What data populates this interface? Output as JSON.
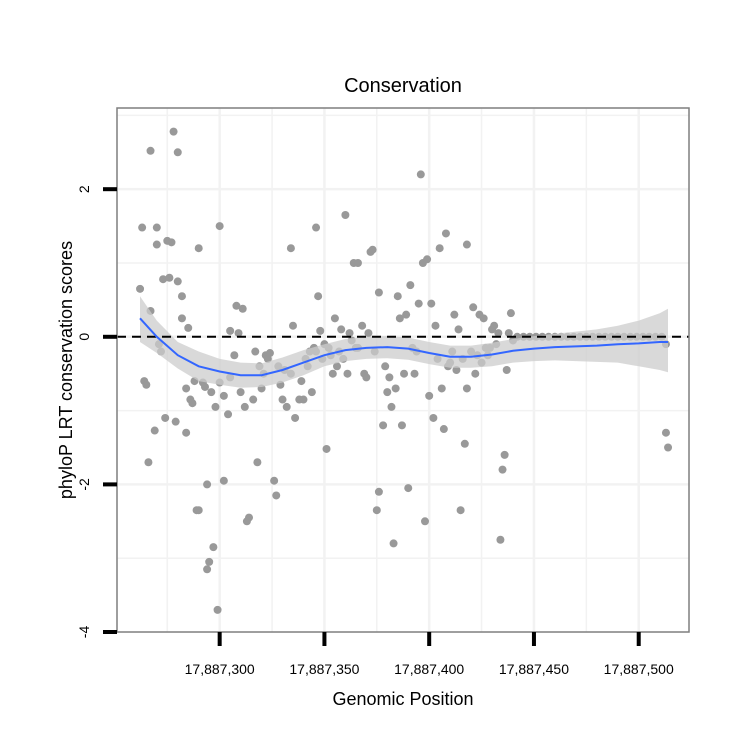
{
  "chart_data": {
    "type": "scatter",
    "title": "Conservation",
    "xlabel": "Genomic Position",
    "ylabel": "phyloP LRT conservation scores",
    "xlim": [
      17887251,
      17887524
    ],
    "ylim": [
      -4,
      3.1
    ],
    "x_ticks": [
      17887300,
      17887350,
      17887400,
      17887450,
      17887500
    ],
    "x_tick_labels": [
      "17,887,300",
      "17,887,350",
      "17,887,400",
      "17,887,450",
      "17,887,500"
    ],
    "y_ticks": [
      -4,
      -2,
      0,
      2
    ],
    "y_tick_labels": [
      "-4",
      "-2",
      "0",
      "2"
    ],
    "grid": true,
    "reference_line": {
      "y": 0,
      "style": "dashed"
    },
    "colors": {
      "points": "#999999",
      "smooth": "#3366ff",
      "ribbon": "#cccccc",
      "panel_border": "#7f7f7f",
      "grid": "#f2f2f2",
      "reference": "#000000"
    },
    "series": [
      {
        "name": "points",
        "points": [
          [
            17887262,
            0.65
          ],
          [
            17887263,
            1.48
          ],
          [
            17887264,
            -0.6
          ],
          [
            17887265,
            -0.65
          ],
          [
            17887266,
            -1.7
          ],
          [
            17887267,
            0.35
          ],
          [
            17887267,
            2.52
          ],
          [
            17887269,
            -1.27
          ],
          [
            17887270,
            1.25
          ],
          [
            17887270,
            1.48
          ],
          [
            17887271,
            -0.1
          ],
          [
            17887272,
            -0.2
          ],
          [
            17887273,
            0.78
          ],
          [
            17887274,
            -1.1
          ],
          [
            17887275,
            1.3
          ],
          [
            17887276,
            0.8
          ],
          [
            17887277,
            1.28
          ],
          [
            17887278,
            2.78
          ],
          [
            17887279,
            -1.15
          ],
          [
            17887280,
            2.5
          ],
          [
            17887280,
            0.75
          ],
          [
            17887282,
            0.55
          ],
          [
            17887282,
            0.25
          ],
          [
            17887284,
            -1.3
          ],
          [
            17887284,
            -0.7
          ],
          [
            17887285,
            0.12
          ],
          [
            17887286,
            -0.85
          ],
          [
            17887287,
            -0.9
          ],
          [
            17887288,
            -0.6
          ],
          [
            17887289,
            -2.35
          ],
          [
            17887290,
            -2.35
          ],
          [
            17887290,
            1.2
          ],
          [
            17887292,
            -0.62
          ],
          [
            17887293,
            -0.68
          ],
          [
            17887294,
            -3.15
          ],
          [
            17887294,
            -2.0
          ],
          [
            17887295,
            -3.05
          ],
          [
            17887296,
            -0.75
          ],
          [
            17887297,
            -2.85
          ],
          [
            17887298,
            -0.95
          ],
          [
            17887299,
            -3.7
          ],
          [
            17887300,
            -0.62
          ],
          [
            17887300,
            1.5
          ],
          [
            17887302,
            -1.95
          ],
          [
            17887302,
            -0.8
          ],
          [
            17887304,
            -1.05
          ],
          [
            17887305,
            0.08
          ],
          [
            17887305,
            -0.55
          ],
          [
            17887307,
            -0.25
          ],
          [
            17887308,
            0.42
          ],
          [
            17887309,
            0.05
          ],
          [
            17887310,
            -0.75
          ],
          [
            17887311,
            0.38
          ],
          [
            17887312,
            -0.95
          ],
          [
            17887313,
            -2.5
          ],
          [
            17887314,
            -2.45
          ],
          [
            17887316,
            -0.85
          ],
          [
            17887317,
            -0.2
          ],
          [
            17887318,
            -1.7
          ],
          [
            17887319,
            -0.4
          ],
          [
            17887320,
            -0.7
          ],
          [
            17887321,
            -0.5
          ],
          [
            17887322,
            -0.25
          ],
          [
            17887323,
            -0.3
          ],
          [
            17887324,
            -0.22
          ],
          [
            17887326,
            -1.95
          ],
          [
            17887327,
            -2.15
          ],
          [
            17887328,
            -0.4
          ],
          [
            17887329,
            -0.65
          ],
          [
            17887330,
            -0.85
          ],
          [
            17887331,
            -0.45
          ],
          [
            17887332,
            -0.95
          ],
          [
            17887334,
            1.2
          ],
          [
            17887334,
            -0.5
          ],
          [
            17887335,
            0.15
          ],
          [
            17887336,
            -1.1
          ],
          [
            17887338,
            -0.85
          ],
          [
            17887339,
            -0.6
          ],
          [
            17887340,
            -0.85
          ],
          [
            17887341,
            -0.3
          ],
          [
            17887342,
            -0.4
          ],
          [
            17887343,
            -0.2
          ],
          [
            17887344,
            -0.75
          ],
          [
            17887345,
            -0.15
          ],
          [
            17887346,
            -0.2
          ],
          [
            17887346,
            1.48
          ],
          [
            17887347,
            0.55
          ],
          [
            17887348,
            0.08
          ],
          [
            17887349,
            -0.3
          ],
          [
            17887350,
            -0.1
          ],
          [
            17887351,
            -1.52
          ],
          [
            17887352,
            -0.15
          ],
          [
            17887353,
            -0.25
          ],
          [
            17887354,
            -0.5
          ],
          [
            17887355,
            0.25
          ],
          [
            17887356,
            -0.4
          ],
          [
            17887357,
            -0.2
          ],
          [
            17887358,
            0.1
          ],
          [
            17887359,
            -0.3
          ],
          [
            17887360,
            1.65
          ],
          [
            17887361,
            -0.5
          ],
          [
            17887362,
            0.05
          ],
          [
            17887363,
            -0.05
          ],
          [
            17887364,
            1.0
          ],
          [
            17887365,
            -0.15
          ],
          [
            17887366,
            -0.15
          ],
          [
            17887366,
            1.0
          ],
          [
            17887368,
            0.15
          ],
          [
            17887369,
            -0.5
          ],
          [
            17887370,
            -0.55
          ],
          [
            17887371,
            0.05
          ],
          [
            17887372,
            1.15
          ],
          [
            17887373,
            1.18
          ],
          [
            17887374,
            -0.2
          ],
          [
            17887375,
            -2.35
          ],
          [
            17887376,
            0.6
          ],
          [
            17887376,
            -2.1
          ],
          [
            17887378,
            -1.2
          ],
          [
            17887379,
            -0.4
          ],
          [
            17887380,
            -0.75
          ],
          [
            17887381,
            -0.55
          ],
          [
            17887382,
            -0.95
          ],
          [
            17887383,
            -2.8
          ],
          [
            17887384,
            -0.7
          ],
          [
            17887385,
            0.55
          ],
          [
            17887386,
            0.25
          ],
          [
            17887387,
            -1.2
          ],
          [
            17887388,
            -0.5
          ],
          [
            17887389,
            0.3
          ],
          [
            17887390,
            -2.05
          ],
          [
            17887391,
            0.7
          ],
          [
            17887392,
            -0.15
          ],
          [
            17887393,
            -0.5
          ],
          [
            17887394,
            -0.2
          ],
          [
            17887395,
            0.45
          ],
          [
            17887396,
            2.2
          ],
          [
            17887397,
            1.0
          ],
          [
            17887398,
            -2.5
          ],
          [
            17887399,
            1.05
          ],
          [
            17887400,
            -0.8
          ],
          [
            17887401,
            0.45
          ],
          [
            17887402,
            -1.1
          ],
          [
            17887403,
            0.15
          ],
          [
            17887404,
            -0.3
          ],
          [
            17887405,
            1.2
          ],
          [
            17887406,
            -0.7
          ],
          [
            17887407,
            -1.25
          ],
          [
            17887408,
            1.4
          ],
          [
            17887409,
            -0.4
          ],
          [
            17887410,
            -0.35
          ],
          [
            17887411,
            -0.2
          ],
          [
            17887412,
            0.3
          ],
          [
            17887413,
            -0.45
          ],
          [
            17887414,
            0.1
          ],
          [
            17887415,
            -2.35
          ],
          [
            17887416,
            -0.3
          ],
          [
            17887417,
            -1.45
          ],
          [
            17887418,
            -0.7
          ],
          [
            17887418,
            1.25
          ],
          [
            17887420,
            -0.2
          ],
          [
            17887421,
            0.4
          ],
          [
            17887422,
            -0.5
          ],
          [
            17887423,
            -0.25
          ],
          [
            17887424,
            0.3
          ],
          [
            17887425,
            -0.35
          ],
          [
            17887426,
            0.25
          ],
          [
            17887427,
            -0.15
          ],
          [
            17887428,
            -0.25
          ],
          [
            17887429,
            -0.15
          ],
          [
            17887430,
            0.1
          ],
          [
            17887431,
            0.15
          ],
          [
            17887432,
            -0.1
          ],
          [
            17887433,
            0.05
          ],
          [
            17887434,
            -2.75
          ],
          [
            17887435,
            -1.8
          ],
          [
            17887436,
            -1.6
          ],
          [
            17887437,
            -0.45
          ],
          [
            17887438,
            0.05
          ],
          [
            17887439,
            0.32
          ],
          [
            17887440,
            -0.05
          ],
          [
            17887442,
            0.0
          ],
          [
            17887445,
            0.0
          ],
          [
            17887448,
            0.0
          ],
          [
            17887451,
            0.0
          ],
          [
            17887454,
            0.0
          ],
          [
            17887457,
            0.0
          ],
          [
            17887460,
            0.0
          ],
          [
            17887463,
            0.0
          ],
          [
            17887466,
            0.0
          ],
          [
            17887469,
            0.0
          ],
          [
            17887472,
            0.0
          ],
          [
            17887475,
            0.0
          ],
          [
            17887478,
            0.0
          ],
          [
            17887481,
            0.0
          ],
          [
            17887484,
            0.0
          ],
          [
            17887487,
            0.0
          ],
          [
            17887490,
            0.0
          ],
          [
            17887493,
            0.0
          ],
          [
            17887496,
            0.0
          ],
          [
            17887499,
            0.0
          ],
          [
            17887502,
            0.0
          ],
          [
            17887505,
            0.0
          ],
          [
            17887508,
            0.0
          ],
          [
            17887511,
            0.0
          ],
          [
            17887513,
            -0.1
          ],
          [
            17887513,
            -1.3
          ],
          [
            17887514,
            -1.5
          ]
        ]
      },
      {
        "name": "smooth",
        "points": [
          [
            17887262,
            0.25
          ],
          [
            17887270,
            0.0
          ],
          [
            17887280,
            -0.25
          ],
          [
            17887290,
            -0.4
          ],
          [
            17887300,
            -0.47
          ],
          [
            17887310,
            -0.52
          ],
          [
            17887320,
            -0.52
          ],
          [
            17887330,
            -0.45
          ],
          [
            17887340,
            -0.35
          ],
          [
            17887350,
            -0.25
          ],
          [
            17887360,
            -0.18
          ],
          [
            17887370,
            -0.15
          ],
          [
            17887380,
            -0.14
          ],
          [
            17887390,
            -0.16
          ],
          [
            17887400,
            -0.22
          ],
          [
            17887410,
            -0.27
          ],
          [
            17887420,
            -0.27
          ],
          [
            17887430,
            -0.24
          ],
          [
            17887440,
            -0.19
          ],
          [
            17887450,
            -0.16
          ],
          [
            17887460,
            -0.14
          ],
          [
            17887470,
            -0.13
          ],
          [
            17887480,
            -0.12
          ],
          [
            17887490,
            -0.1
          ],
          [
            17887500,
            -0.09
          ],
          [
            17887510,
            -0.07
          ],
          [
            17887514,
            -0.07
          ]
        ],
        "ribbon_lower": [
          -0.07,
          -0.22,
          -0.43,
          -0.6,
          -0.65,
          -0.69,
          -0.68,
          -0.62,
          -0.52,
          -0.4,
          -0.33,
          -0.3,
          -0.29,
          -0.31,
          -0.37,
          -0.42,
          -0.42,
          -0.4,
          -0.35,
          -0.33,
          -0.32,
          -0.33,
          -0.34,
          -0.35,
          -0.4,
          -0.45,
          -0.48
        ],
        "ribbon_upper": [
          0.55,
          0.22,
          -0.07,
          -0.2,
          -0.3,
          -0.35,
          -0.36,
          -0.28,
          -0.18,
          -0.1,
          -0.03,
          0.0,
          0.01,
          -0.01,
          -0.07,
          -0.12,
          -0.12,
          -0.08,
          -0.03,
          0.01,
          0.04,
          0.07,
          0.1,
          0.15,
          0.22,
          0.32,
          0.38
        ]
      }
    ]
  }
}
